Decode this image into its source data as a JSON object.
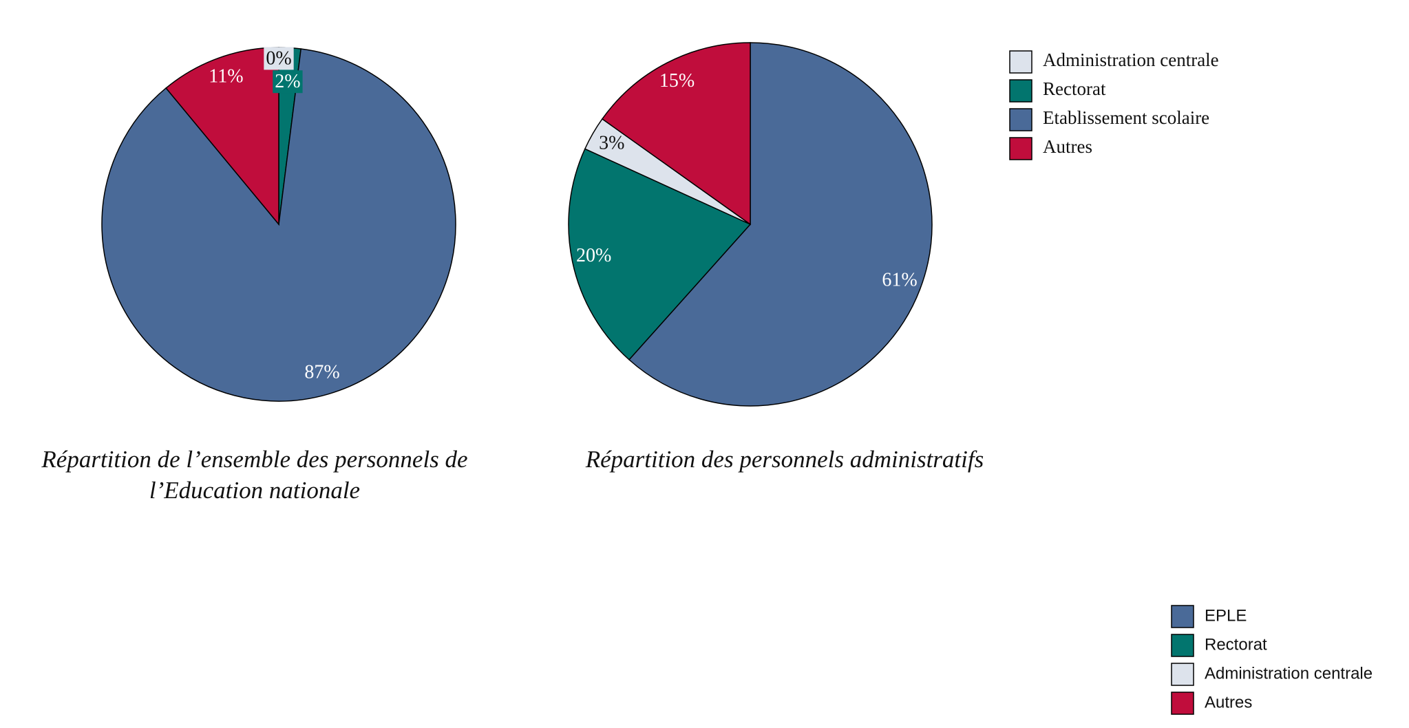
{
  "chart_data": [
    {
      "type": "pie",
      "title": "Répartition de l’ensemble des personnels de l’Education nationale",
      "categories": [
        "Administration centrale",
        "Rectorat",
        "Etablissement scolaire",
        "Autres"
      ],
      "values": [
        0,
        2,
        87,
        11
      ],
      "value_labels": [
        "0%",
        "2%",
        "87%",
        "11%"
      ],
      "colors": [
        "#dde3ec",
        "#02756e",
        "#4a6a98",
        "#c00d3c"
      ],
      "legend": "top-right"
    },
    {
      "type": "pie",
      "title": "Répartition des personnels administratifs",
      "categories": [
        "EPLE",
        "Rectorat",
        "Administration centrale",
        "Autres"
      ],
      "values": [
        61,
        20,
        3,
        15
      ],
      "value_labels": [
        "61%",
        "20%",
        "3%",
        "15%"
      ],
      "colors": [
        "#4a6a98",
        "#02756e",
        "#dde3ec",
        "#c00d3c"
      ],
      "legend": "bottom-right"
    }
  ]
}
